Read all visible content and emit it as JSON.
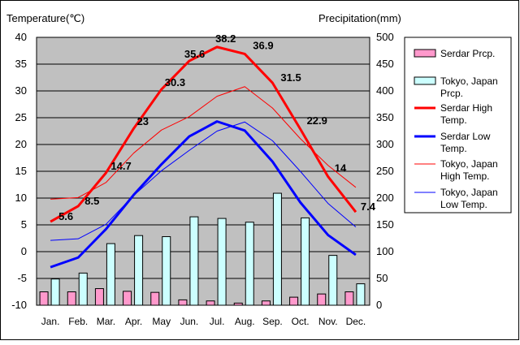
{
  "axis_titles": {
    "left": "Temperature(℃)",
    "right": "Precipitation(mm)"
  },
  "colors": {
    "plot_bg": "#c0c0c0",
    "serdar_prcp": "#ff99cc",
    "tokyo_prcp": "#ccffff",
    "serdar_high": "#ff0000",
    "serdar_low": "#0000ff",
    "tokyo_high": "#ff0000",
    "tokyo_low": "#0000ff"
  },
  "chart_data": {
    "type": "bar",
    "categories": [
      "Jan.",
      "Feb.",
      "Mar.",
      "Apr.",
      "May",
      "Jun.",
      "Jul.",
      "Aug.",
      "Sep.",
      "Oct.",
      "Nov.",
      "Dec."
    ],
    "ylabel_left": "Temperature(℃)",
    "ylabel_right": "Precipitation(mm)",
    "ylim_left": [
      -10,
      40
    ],
    "ylim_right": [
      0,
      500
    ],
    "yticks_left": [
      -10,
      -5,
      0,
      5,
      10,
      15,
      20,
      25,
      30,
      35,
      40
    ],
    "yticks_right": [
      0,
      50,
      100,
      150,
      200,
      250,
      300,
      350,
      400,
      450,
      500
    ],
    "grid": true,
    "legend_position": "right",
    "bar_series": [
      {
        "name": "Serdar Prcp.",
        "axis": "right",
        "color_key": "serdar_prcp",
        "values": [
          25,
          25,
          31,
          26,
          24,
          10,
          8,
          4,
          8,
          15,
          21,
          25
        ]
      },
      {
        "name": "Tokyo, Japan Prcp.",
        "axis": "right",
        "color_key": "tokyo_prcp",
        "values": [
          49,
          60,
          115,
          130,
          128,
          165,
          162,
          155,
          209,
          163,
          93,
          40
        ]
      }
    ],
    "line_series": [
      {
        "name": "Serdar High Temp.",
        "axis": "left",
        "color_key": "serdar_high",
        "width": 3,
        "show_labels": true,
        "values": [
          5.6,
          8.5,
          14.7,
          23,
          30.3,
          35.6,
          38.2,
          36.9,
          31.5,
          22.9,
          14,
          7.4
        ]
      },
      {
        "name": "Serdar Low Temp.",
        "axis": "left",
        "color_key": "serdar_low",
        "width": 3,
        "show_labels": false,
        "values": [
          -2.9,
          -1.1,
          4.2,
          10.6,
          16.3,
          21.5,
          24.3,
          22.6,
          16.8,
          9.2,
          3.1,
          -0.6
        ]
      },
      {
        "name": "Tokyo, Japan High Temp.",
        "axis": "left",
        "color_key": "tokyo_high",
        "width": 1,
        "show_labels": false,
        "values": [
          9.8,
          10.1,
          12.9,
          18.4,
          22.7,
          25.2,
          29,
          30.8,
          26.8,
          21.1,
          16.1,
          12
        ]
      },
      {
        "name": "Tokyo, Japan Low Temp.",
        "axis": "left",
        "color_key": "tokyo_low",
        "width": 1,
        "show_labels": false,
        "values": [
          2.1,
          2.4,
          5.1,
          10.5,
          15.1,
          18.9,
          22.5,
          24.2,
          20.7,
          15,
          9,
          4.6
        ]
      }
    ],
    "legend": [
      {
        "label": "Serdar Prcp.",
        "kind": "box",
        "color_key": "serdar_prcp"
      },
      {
        "label": "Tokyo, Japan Prcp.",
        "kind": "box",
        "color_key": "tokyo_prcp"
      },
      {
        "label": "Serdar High Temp.",
        "kind": "line",
        "color_key": "serdar_high",
        "width": 3
      },
      {
        "label": "Serdar Low Temp.",
        "kind": "line",
        "color_key": "serdar_low",
        "width": 3
      },
      {
        "label": "Tokyo, Japan High Temp.",
        "kind": "line",
        "color_key": "tokyo_high",
        "width": 1
      },
      {
        "label": "Tokyo, Japan Low Temp.",
        "kind": "line",
        "color_key": "tokyo_low",
        "width": 1
      }
    ]
  }
}
